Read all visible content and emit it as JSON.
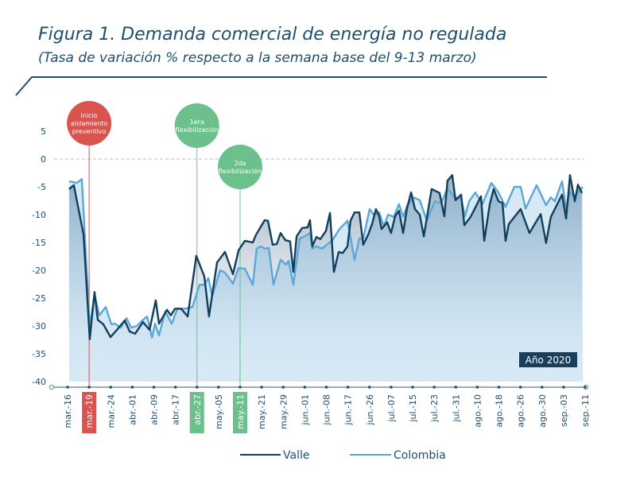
{
  "header": {
    "title": "Figura 1. Demanda comercial de energía no regulada",
    "subtitle": "(Tasa de variación % respecto a la semana base del  9-13 marzo)"
  },
  "badge": "Año 2020",
  "colors": {
    "valle": "#123f5c",
    "colombia": "#5aa8d8",
    "accent": "#1d4e6e",
    "event_red": "#d9534f",
    "event_green": "#6cc08b"
  },
  "events": [
    {
      "lines": [
        "Inicio",
        "aislamiento",
        "preventivo"
      ],
      "tick": 1,
      "color": "red"
    },
    {
      "lines": [
        "1era",
        "flexibilización"
      ],
      "tick": 6,
      "color": "green"
    },
    {
      "lines": [
        "2da",
        "flexibilización"
      ],
      "tick": 8,
      "color": "green"
    }
  ],
  "chart_data": {
    "type": "line",
    "title": "Figura 1. Demanda comercial de energía no regulada",
    "subtitle": "(Tasa de variación % respecto a la semana base del  9-13 marzo)",
    "ylim": [
      -40,
      5
    ],
    "yticks": [
      5,
      0,
      -5,
      -10,
      -15,
      -20,
      -25,
      -30,
      -35,
      -40
    ],
    "xtick_labels": [
      "mar.-16",
      "mar.-19",
      "mar.-24",
      "abr.-01",
      "abr.-09",
      "abr.-17",
      "abr.-27",
      "may.-05",
      "may.-11",
      "may.-21",
      "may.-29",
      "jun.-01",
      "jun.-08",
      "jun.-17",
      "jun.-26",
      "jul.-07",
      "jul.-15",
      "jul.-23",
      "jul.-31",
      "ago.-10",
      "ago.-18",
      "ago.-26",
      "ago.-30",
      "sep.-03",
      "sep.-11"
    ],
    "highlighted_ticks": [
      1,
      6,
      8
    ],
    "reference_line": 0,
    "legend": "bottom",
    "series": [
      {
        "name": "Valle",
        "points": [
          [
            0.07,
            -5.4
          ],
          [
            0.29,
            -4.7
          ],
          [
            0.74,
            -13.6
          ],
          [
            1.03,
            -32.4
          ],
          [
            1.25,
            -23.9
          ],
          [
            1.4,
            -28.9
          ],
          [
            1.66,
            -29.7
          ],
          [
            1.99,
            -32
          ],
          [
            2.29,
            -30.7
          ],
          [
            2.65,
            -29
          ],
          [
            2.88,
            -31
          ],
          [
            3.13,
            -31.4
          ],
          [
            3.5,
            -29.3
          ],
          [
            3.8,
            -30.7
          ],
          [
            4.09,
            -25.4
          ],
          [
            4.24,
            -29.6
          ],
          [
            4.61,
            -27.1
          ],
          [
            4.79,
            -28.1
          ],
          [
            4.98,
            -26.9
          ],
          [
            5.27,
            -26.9
          ],
          [
            5.57,
            -28.3
          ],
          [
            5.97,
            -17.4
          ],
          [
            6.34,
            -21.1
          ],
          [
            6.56,
            -28.3
          ],
          [
            6.93,
            -18.6
          ],
          [
            7.3,
            -16.7
          ],
          [
            7.67,
            -20.7
          ],
          [
            7.93,
            -16.4
          ],
          [
            8.22,
            -14.7
          ],
          [
            8.59,
            -15
          ],
          [
            8.74,
            -13.6
          ],
          [
            9.14,
            -11
          ],
          [
            9.29,
            -11.1
          ],
          [
            9.51,
            -15.4
          ],
          [
            9.7,
            -15.3
          ],
          [
            9.88,
            -13.3
          ],
          [
            10.1,
            -14.6
          ],
          [
            10.32,
            -14.8
          ],
          [
            10.47,
            -20.3
          ],
          [
            10.62,
            -13.9
          ],
          [
            10.88,
            -12.4
          ],
          [
            11.13,
            -12.3
          ],
          [
            11.24,
            -11
          ],
          [
            11.35,
            -15.7
          ],
          [
            11.54,
            -14
          ],
          [
            11.72,
            -14.4
          ],
          [
            11.98,
            -12.9
          ],
          [
            12.17,
            -9.7
          ],
          [
            12.35,
            -20.3
          ],
          [
            12.57,
            -16.7
          ],
          [
            12.76,
            -16.9
          ],
          [
            12.98,
            -15.7
          ],
          [
            13.12,
            -11.1
          ],
          [
            13.31,
            -9.6
          ],
          [
            13.53,
            -9.6
          ],
          [
            13.71,
            -15.4
          ],
          [
            13.94,
            -13.6
          ],
          [
            14.12,
            -11.7
          ],
          [
            14.3,
            -9
          ],
          [
            14.45,
            -10.3
          ],
          [
            14.56,
            -12.6
          ],
          [
            14.82,
            -11.4
          ],
          [
            15,
            -13.3
          ],
          [
            15.19,
            -10.3
          ],
          [
            15.37,
            -9.3
          ],
          [
            15.56,
            -13.3
          ],
          [
            15.74,
            -8.9
          ],
          [
            15.93,
            -6
          ],
          [
            16.11,
            -9
          ],
          [
            16.33,
            -10
          ],
          [
            16.52,
            -13.9
          ],
          [
            16.88,
            -5.4
          ],
          [
            17.25,
            -6.1
          ],
          [
            17.47,
            -10.3
          ],
          [
            17.62,
            -3.9
          ],
          [
            17.84,
            -2.9
          ],
          [
            17.99,
            -7.4
          ],
          [
            18.25,
            -6.4
          ],
          [
            18.4,
            -11.9
          ],
          [
            18.69,
            -10.4
          ],
          [
            19.17,
            -6.7
          ],
          [
            19.32,
            -14.7
          ],
          [
            19.58,
            -8.1
          ],
          [
            19.76,
            -5.4
          ],
          [
            19.98,
            -7.6
          ],
          [
            20.17,
            -7.9
          ],
          [
            20.31,
            -14.7
          ],
          [
            20.46,
            -11.7
          ],
          [
            21.01,
            -9
          ],
          [
            21.42,
            -13.3
          ],
          [
            21.94,
            -9.9
          ],
          [
            22.19,
            -15.1
          ],
          [
            22.41,
            -10.4
          ],
          [
            22.93,
            -6.4
          ],
          [
            23.12,
            -10.7
          ],
          [
            23.3,
            -2.9
          ],
          [
            23.52,
            -7.6
          ],
          [
            23.67,
            -4.6
          ],
          [
            23.85,
            -6.1
          ]
        ]
      },
      {
        "name": "Colombia",
        "points": [
          [
            0.07,
            -4
          ],
          [
            0.44,
            -4.3
          ],
          [
            0.66,
            -3.6
          ],
          [
            1.03,
            -30.3
          ],
          [
            1.25,
            -24.3
          ],
          [
            1.47,
            -28.1
          ],
          [
            1.77,
            -26.6
          ],
          [
            2.03,
            -29.7
          ],
          [
            2.21,
            -29.6
          ],
          [
            2.47,
            -30.3
          ],
          [
            2.73,
            -28.6
          ],
          [
            2.95,
            -30.3
          ],
          [
            3.21,
            -30
          ],
          [
            3.5,
            -28.9
          ],
          [
            3.69,
            -28.3
          ],
          [
            3.91,
            -32.1
          ],
          [
            4.06,
            -29.6
          ],
          [
            4.24,
            -31.7
          ],
          [
            4.53,
            -27.4
          ],
          [
            4.83,
            -29.6
          ],
          [
            5.09,
            -26.9
          ],
          [
            5.46,
            -26.9
          ],
          [
            5.79,
            -26.6
          ],
          [
            6.12,
            -22.6
          ],
          [
            6.34,
            -22.6
          ],
          [
            6.53,
            -21.4
          ],
          [
            6.71,
            -24.6
          ],
          [
            7.08,
            -20
          ],
          [
            7.3,
            -20.4
          ],
          [
            7.67,
            -22.4
          ],
          [
            7.93,
            -19.6
          ],
          [
            8.22,
            -19.7
          ],
          [
            8.59,
            -22.6
          ],
          [
            8.77,
            -16.1
          ],
          [
            8.96,
            -15.7
          ],
          [
            9.14,
            -16.1
          ],
          [
            9.33,
            -16
          ],
          [
            9.55,
            -22.6
          ],
          [
            9.88,
            -18.1
          ],
          [
            10.14,
            -19
          ],
          [
            10.25,
            -18.3
          ],
          [
            10.47,
            -22.6
          ],
          [
            10.76,
            -14.3
          ],
          [
            10.99,
            -13.9
          ],
          [
            11.24,
            -13.3
          ],
          [
            11.35,
            -16.1
          ],
          [
            11.54,
            -15.7
          ],
          [
            11.8,
            -16.1
          ],
          [
            12.06,
            -15.3
          ],
          [
            12.28,
            -14.6
          ],
          [
            12.61,
            -12.6
          ],
          [
            12.98,
            -11.1
          ],
          [
            13.31,
            -18.1
          ],
          [
            13.53,
            -14.3
          ],
          [
            13.71,
            -14.3
          ],
          [
            14.01,
            -9
          ],
          [
            14.19,
            -10
          ],
          [
            14.45,
            -9.6
          ],
          [
            14.67,
            -12.1
          ],
          [
            14.86,
            -10
          ],
          [
            15.12,
            -10.4
          ],
          [
            15.37,
            -8.1
          ],
          [
            15.56,
            -10.4
          ],
          [
            15.78,
            -8.1
          ],
          [
            16.04,
            -6.9
          ],
          [
            16.33,
            -7.4
          ],
          [
            16.66,
            -11.1
          ],
          [
            17.03,
            -7.6
          ],
          [
            17.33,
            -7.9
          ],
          [
            17.62,
            -5.3
          ],
          [
            17.95,
            -6.9
          ],
          [
            18.25,
            -7.1
          ],
          [
            18.43,
            -10.3
          ],
          [
            18.62,
            -7.6
          ],
          [
            18.91,
            -6
          ],
          [
            19.24,
            -8.1
          ],
          [
            19.65,
            -4.3
          ],
          [
            19.98,
            -6
          ],
          [
            20.31,
            -8.6
          ],
          [
            20.72,
            -5
          ],
          [
            21.01,
            -5
          ],
          [
            21.24,
            -8.9
          ],
          [
            21.75,
            -4.7
          ],
          [
            22.19,
            -8.3
          ],
          [
            22.41,
            -6.9
          ],
          [
            22.6,
            -7.6
          ],
          [
            22.93,
            -4
          ],
          [
            23.12,
            -8.9
          ],
          [
            23.3,
            -6
          ],
          [
            23.52,
            -6.7
          ],
          [
            23.89,
            -5
          ]
        ]
      }
    ]
  }
}
